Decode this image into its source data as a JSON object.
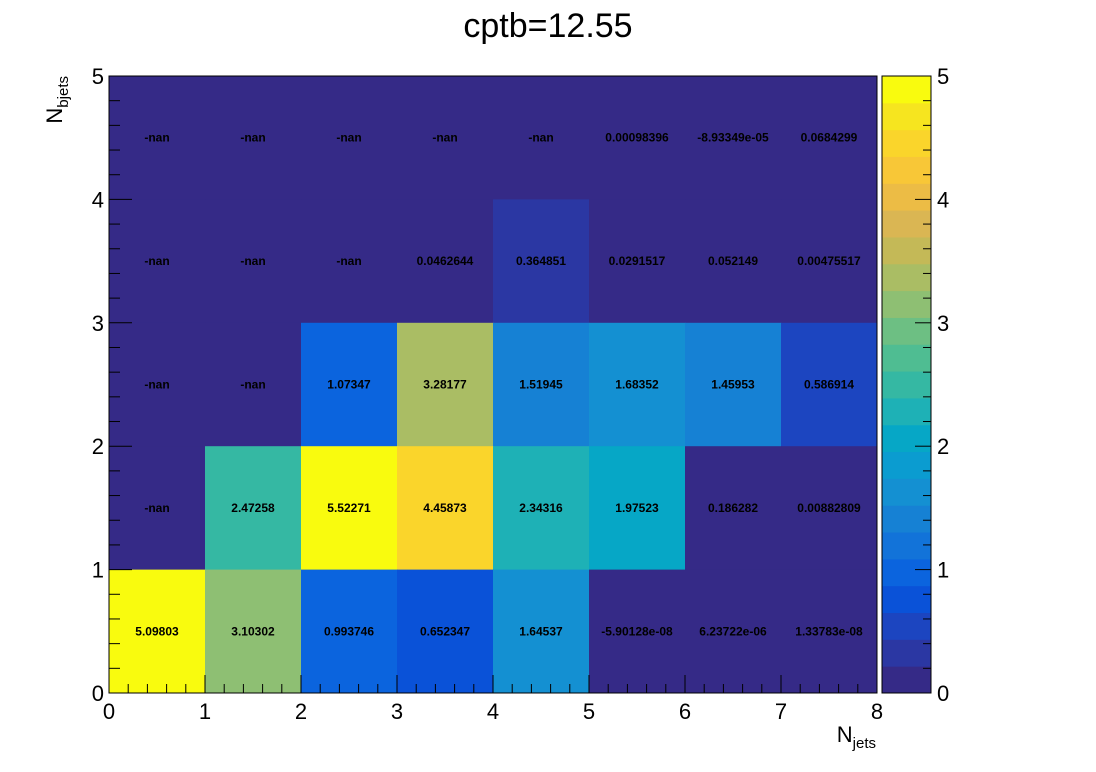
{
  "chart_data": {
    "type": "heatmap",
    "title": "cptb=12.55",
    "xlabel": {
      "main": "N",
      "sub": "jets"
    },
    "ylabel": {
      "main": "N",
      "sub": "bjets"
    },
    "xlim": [
      0,
      8
    ],
    "ylim": [
      0,
      5
    ],
    "zlim": [
      0,
      5
    ],
    "x_ticks": [
      "0",
      "1",
      "2",
      "3",
      "4",
      "5",
      "6",
      "7",
      "8"
    ],
    "y_ticks": [
      "0",
      "1",
      "2",
      "3",
      "4",
      "5"
    ],
    "z_ticks": [
      "0",
      "1",
      "2",
      "3",
      "4",
      "5"
    ],
    "palette": [
      "#352a87",
      "#2b37a3",
      "#1c45c0",
      "#0a52d8",
      "#0b64de",
      "#1273d9",
      "#1681d4",
      "#1490d2",
      "#0b9cd0",
      "#06a7c6",
      "#1eb1b6",
      "#35b8a3",
      "#4fbd92",
      "#6dbf83",
      "#8ebf73",
      "#aabd64",
      "#c4b957",
      "#dab653",
      "#ecbc45",
      "#f8c737",
      "#fad52b",
      "#f6e51f",
      "#f9fb0e"
    ],
    "cells": [
      {
        "row": 4,
        "labels": [
          "-nan",
          "-nan",
          "-nan",
          "-nan",
          "-nan",
          "0.00098396",
          "-8.93349e-05",
          "0.0684299"
        ],
        "values": [
          null,
          null,
          null,
          null,
          null,
          0.00098396,
          -8.93349e-05,
          0.0684299
        ]
      },
      {
        "row": 3,
        "labels": [
          "-nan",
          "-nan",
          "-nan",
          "0.0462644",
          "0.364851",
          "0.0291517",
          "0.052149",
          "0.00475517"
        ],
        "values": [
          null,
          null,
          null,
          0.0462644,
          0.364851,
          0.0291517,
          0.052149,
          0.00475517
        ]
      },
      {
        "row": 2,
        "labels": [
          "-nan",
          "-nan",
          "1.07347",
          "3.28177",
          "1.51945",
          "1.68352",
          "1.45953",
          "0.586914"
        ],
        "values": [
          null,
          null,
          1.07347,
          3.28177,
          1.51945,
          1.68352,
          1.45953,
          0.586914
        ]
      },
      {
        "row": 1,
        "labels": [
          "-nan",
          "2.47258",
          "5.52271",
          "4.45873",
          "2.34316",
          "1.97523",
          "0.186282",
          "0.00882809"
        ],
        "values": [
          null,
          2.47258,
          5.52271,
          4.45873,
          2.34316,
          1.97523,
          0.186282,
          0.00882809
        ]
      },
      {
        "row": 0,
        "labels": [
          "5.09803",
          "3.10302",
          "0.993746",
          "0.652347",
          "1.64537",
          "-5.90128e-08",
          "6.23722e-06",
          "1.33783e-08"
        ],
        "values": [
          5.09803,
          3.10302,
          0.993746,
          0.652347,
          1.64537,
          -5.90128e-08,
          6.23722e-06,
          1.33783e-08
        ]
      }
    ]
  }
}
